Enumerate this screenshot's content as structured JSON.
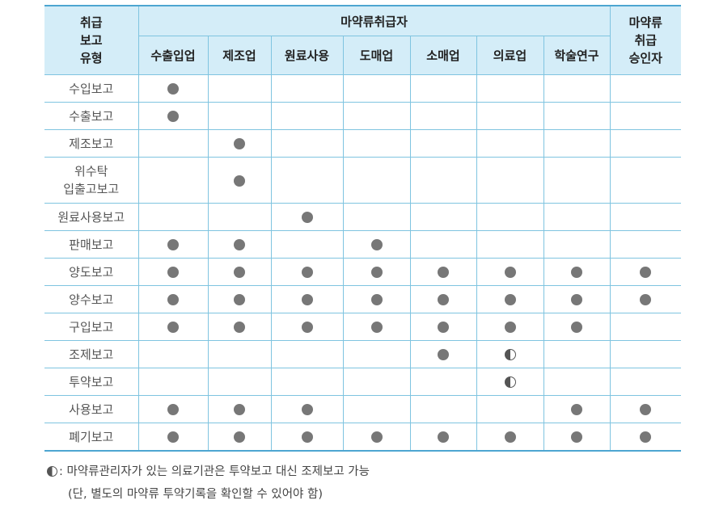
{
  "header": {
    "row_header": "취급\n보고\n유형",
    "handler_group": "마약류취급자",
    "handlers": [
      "수출입업",
      "제조업",
      "원료사용",
      "도매업",
      "소매업",
      "의료업",
      "학술연구"
    ],
    "approved": "마약류\n취급\n승인자"
  },
  "rows": [
    {
      "label": "수입보고",
      "marks": [
        "full",
        "",
        "",
        "",
        "",
        "",
        "",
        ""
      ]
    },
    {
      "label": "수출보고",
      "marks": [
        "full",
        "",
        "",
        "",
        "",
        "",
        "",
        ""
      ]
    },
    {
      "label": "제조보고",
      "marks": [
        "",
        "full",
        "",
        "",
        "",
        "",
        "",
        ""
      ]
    },
    {
      "label": "위수탁\n입출고보고",
      "marks": [
        "",
        "full",
        "",
        "",
        "",
        "",
        "",
        ""
      ]
    },
    {
      "label": "원료사용보고",
      "marks": [
        "",
        "",
        "full",
        "",
        "",
        "",
        "",
        ""
      ]
    },
    {
      "label": "판매보고",
      "marks": [
        "full",
        "full",
        "",
        "full",
        "",
        "",
        "",
        ""
      ]
    },
    {
      "label": "양도보고",
      "marks": [
        "full",
        "full",
        "full",
        "full",
        "full",
        "full",
        "full",
        "full"
      ]
    },
    {
      "label": "양수보고",
      "marks": [
        "full",
        "full",
        "full",
        "full",
        "full",
        "full",
        "full",
        "full"
      ]
    },
    {
      "label": "구입보고",
      "marks": [
        "full",
        "full",
        "full",
        "full",
        "full",
        "full",
        "full",
        ""
      ]
    },
    {
      "label": "조제보고",
      "marks": [
        "",
        "",
        "",
        "",
        "full",
        "half",
        "",
        ""
      ]
    },
    {
      "label": "투약보고",
      "marks": [
        "",
        "",
        "",
        "",
        "",
        "half",
        "",
        ""
      ]
    },
    {
      "label": "사용보고",
      "marks": [
        "full",
        "full",
        "full",
        "",
        "",
        "",
        "full",
        "full"
      ]
    },
    {
      "label": "폐기보고",
      "marks": [
        "full",
        "full",
        "full",
        "full",
        "full",
        "full",
        "full",
        "full"
      ]
    }
  ],
  "notes": {
    "line1": ": 마약류관리자가 있는 의료기관은 투약보고 대신 조제보고 가능",
    "line2": "(단, 별도의 마약류 투약기록을 확인할 수 있어야 함)"
  },
  "colors": {
    "header_bg": "#d4edf8",
    "border": "#7fc4e0",
    "dot": "#777777"
  }
}
